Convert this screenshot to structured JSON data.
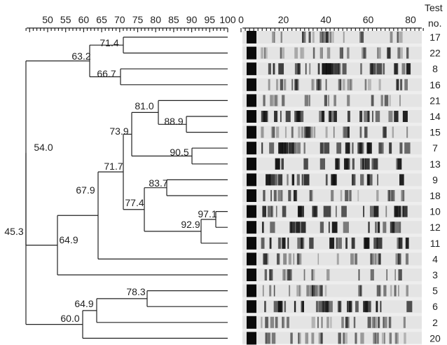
{
  "similarity_axis": {
    "ticks": [
      "50",
      "55",
      "60",
      "65",
      "70",
      "75",
      "80",
      "85",
      "90",
      "95",
      "100"
    ]
  },
  "gel_axis": {
    "ticks": [
      "0",
      "20",
      "40",
      "60",
      "80"
    ]
  },
  "header": {
    "test_label_line1": "Test",
    "test_label_line2": "no."
  },
  "samples": [
    "17",
    "22",
    "8",
    "16",
    "21",
    "14",
    "15",
    "7",
    "13",
    "9",
    "18",
    "10",
    "12",
    "11",
    "4",
    "3",
    "5",
    "6",
    "2",
    "20"
  ],
  "nodes": [
    {
      "id": "n1",
      "label": "71.4",
      "leaves": [
        "17",
        "22"
      ]
    },
    {
      "id": "n2",
      "label": "66.7",
      "leaves": [
        "8",
        "16"
      ]
    },
    {
      "id": "n3",
      "label": "63.2",
      "children": [
        "n1",
        "n2"
      ]
    },
    {
      "id": "n4",
      "label": "88.9",
      "leaves": [
        "14",
        "15"
      ]
    },
    {
      "id": "n5",
      "label": "81.0",
      "children": [
        "21",
        "n4"
      ]
    },
    {
      "id": "n6",
      "label": "90.5",
      "leaves": [
        "7",
        "13"
      ]
    },
    {
      "id": "n7",
      "label": "73.9",
      "children": [
        "n5",
        "n6"
      ]
    },
    {
      "id": "n8",
      "label": "83.7",
      "leaves": [
        "9",
        "18"
      ]
    },
    {
      "id": "n9",
      "label": "97.1",
      "leaves": [
        "10",
        "12"
      ]
    },
    {
      "id": "n10",
      "label": "92.9",
      "children": [
        "n9",
        "11"
      ]
    },
    {
      "id": "n11",
      "label": "77.4",
      "children": [
        "n8",
        "n10"
      ]
    },
    {
      "id": "n12",
      "label": "71.7",
      "children": [
        "n7",
        "n11"
      ]
    },
    {
      "id": "n13",
      "label": "67.9",
      "children": [
        "n12",
        "4"
      ]
    },
    {
      "id": "n14",
      "label": "64.9",
      "children": [
        "n13",
        "3"
      ]
    },
    {
      "id": "n15",
      "label": "54.0",
      "children": [
        "n3",
        "n14"
      ]
    },
    {
      "id": "n16",
      "label": "78.3",
      "leaves": [
        "5",
        "6"
      ]
    },
    {
      "id": "n17",
      "label": "64.9",
      "children": [
        "n16",
        "2"
      ]
    },
    {
      "id": "n18",
      "label": "60.0",
      "children": [
        "n17",
        "20"
      ]
    },
    {
      "id": "n19",
      "label": "45.3",
      "children": [
        "n15",
        "n18"
      ]
    }
  ],
  "colors": {
    "line": "#222222",
    "gel_bg": "#eeeeee",
    "band": "#111111"
  }
}
